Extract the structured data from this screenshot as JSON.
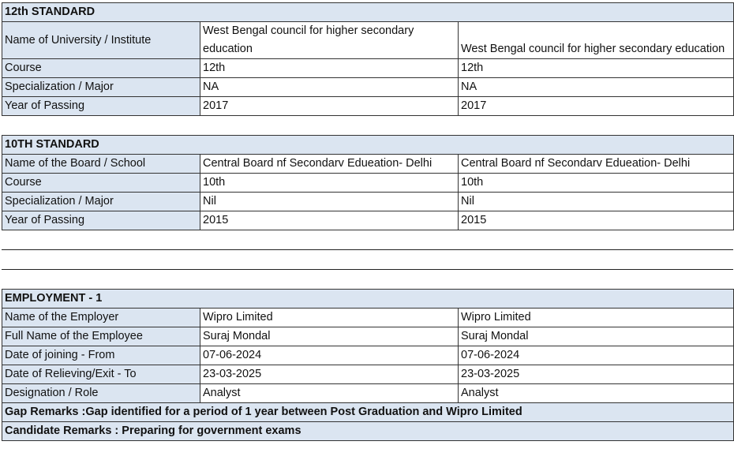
{
  "sections": [
    {
      "title": "12th STANDARD",
      "rows": [
        [
          "Name of University / Institute",
          "West Bengal council for higher secondary education",
          "West Bengal council for higher secondary education"
        ],
        [
          "Course",
          "12th",
          "12th"
        ],
        [
          "Specialization / Major",
          "NA",
          "NA"
        ],
        [
          "Year of Passing",
          "2017",
          "2017"
        ]
      ]
    },
    {
      "title": "10TH STANDARD",
      "rows": [
        [
          "Name of the Board / School",
          "Central Board nf Secondarv Edueation- Delhi",
          "Central Board nf Secondarv Edueation- Delhi"
        ],
        [
          "Course",
          "10th",
          "10th"
        ],
        [
          "Specialization / Major",
          "Nil",
          "Nil"
        ],
        [
          "Year of Passing",
          "2015",
          "2015"
        ]
      ]
    },
    {
      "title": "EMPLOYMENT - 1",
      "rows": [
        [
          "Name of the Employer",
          "Wipro Limited",
          "Wipro Limited"
        ],
        [
          "Full Name of the Employee",
          "Suraj Mondal",
          "Suraj Mondal"
        ],
        [
          "Date of joining - From",
          "07-06-2024",
          "07-06-2024"
        ],
        [
          "Date of Relieving/Exit - To",
          "23-03-2025",
          "23-03-2025"
        ],
        [
          "Designation / Role",
          "Analyst",
          "Analyst"
        ]
      ],
      "remarks": [
        "Gap Remarks :Gap identified for a period of 1 year between Post Graduation and Wipro Limited",
        "Candidate Remarks : Preparing for government exams"
      ]
    }
  ]
}
